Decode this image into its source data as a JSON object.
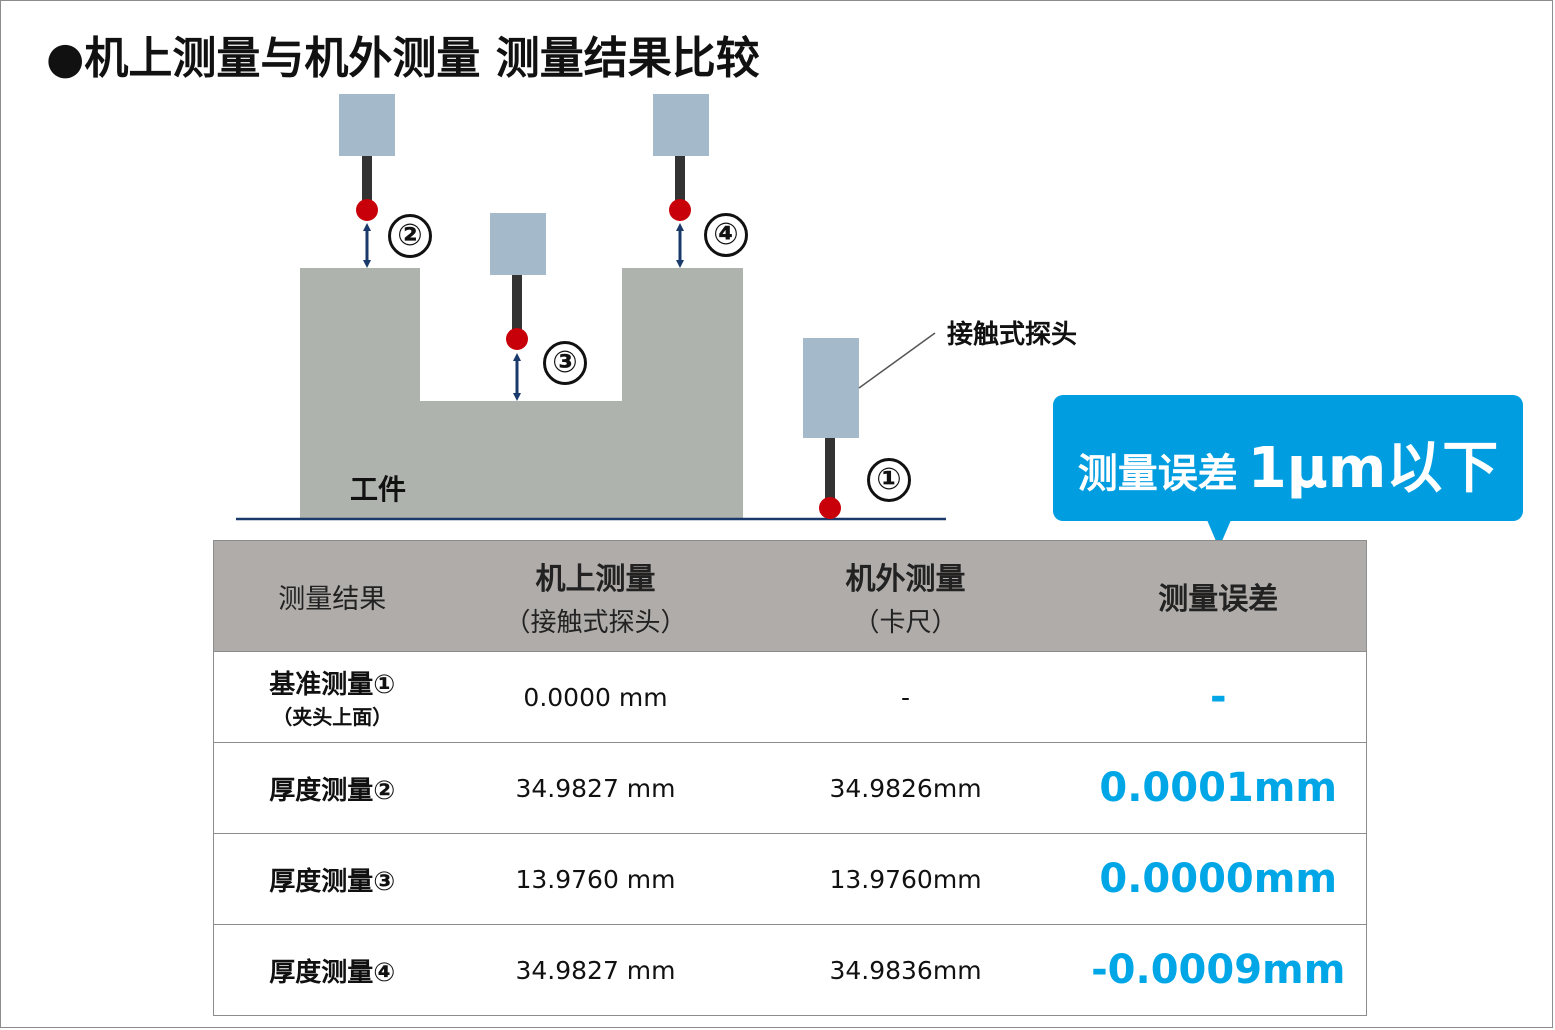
{
  "title": "●机上测量与机外测量 测量结果比较",
  "diagram": {
    "probe_label": "接触式探头",
    "workpiece_label": "工件",
    "markers": [
      "①",
      "②",
      "③",
      "④"
    ],
    "colors": {
      "probe_body": "#a4b9c9",
      "stylus": "#333333",
      "stylus_tip": "#c8000a",
      "workpiece": "#aeb3ad",
      "arrow": "#1a3a6b",
      "base_line": "#1a3a6b"
    }
  },
  "callout": {
    "text": "测量误差",
    "value": "1μm以下",
    "color": "#009ee0"
  },
  "table": {
    "header": {
      "col0": "测量结果",
      "col1_main": "机上测量",
      "col1_sub": "（接触式探头）",
      "col2_main": "机外测量",
      "col2_sub": "（卡尺）",
      "col3": "测量误差"
    },
    "rows": [
      {
        "label": "基准测量①",
        "sub": "（夹头上面）",
        "onmachine": "0.0000 mm",
        "offmachine": "-",
        "error": "-"
      },
      {
        "label": "厚度测量②",
        "sub": "",
        "onmachine": "34.9827 mm",
        "offmachine": "34.9826mm",
        "error": "0.0001mm"
      },
      {
        "label": "厚度测量③",
        "sub": "",
        "onmachine": "13.9760 mm",
        "offmachine": "13.9760mm",
        "error": "0.0000mm"
      },
      {
        "label": "厚度测量④",
        "sub": "",
        "onmachine": "34.9827 mm",
        "offmachine": "34.9836mm",
        "error": "-0.0009mm"
      }
    ],
    "header_bg": "#b0acaa",
    "error_color": "#00a6e6"
  }
}
